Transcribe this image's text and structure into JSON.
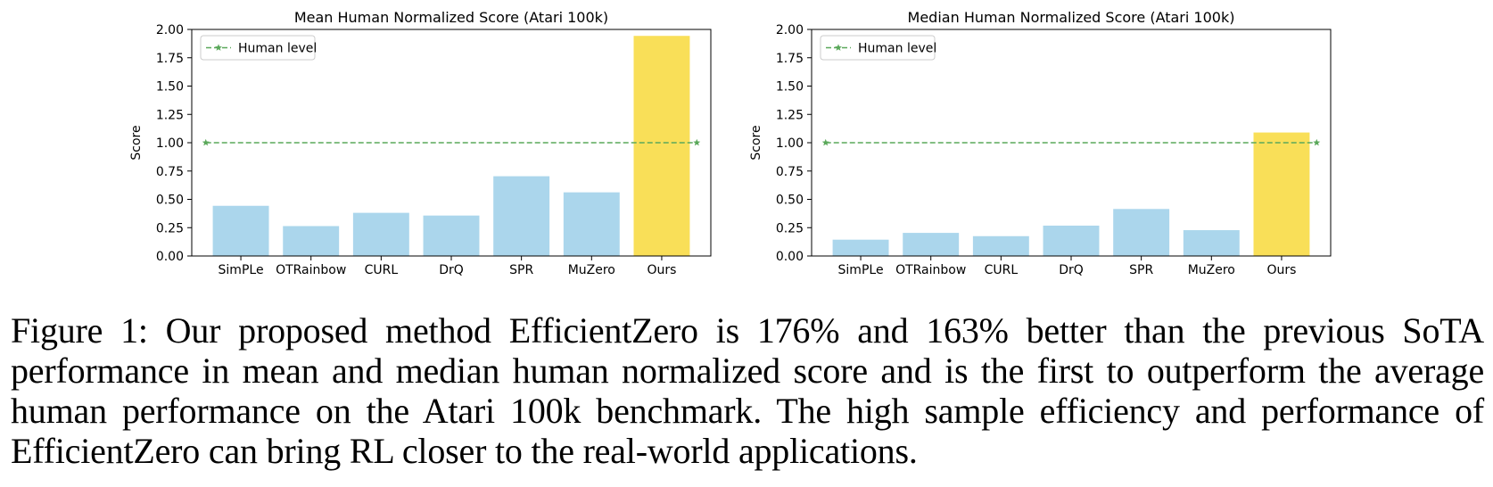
{
  "chart_data": [
    {
      "type": "bar",
      "title": "Mean Human Normalized Score (Atari 100k)",
      "xlabel": "",
      "ylabel": "Score",
      "categories": [
        "SimPLe",
        "OTRainbow",
        "CURL",
        "DrQ",
        "SPR",
        "MuZero",
        "Ours"
      ],
      "values": [
        0.443,
        0.264,
        0.381,
        0.357,
        0.704,
        0.562,
        1.943
      ],
      "bar_colors": [
        "#abd6ec",
        "#abd6ec",
        "#abd6ec",
        "#abd6ec",
        "#abd6ec",
        "#abd6ec",
        "#f9df58"
      ],
      "ylim": [
        0,
        2.0
      ],
      "yticks": [
        "0.00",
        "0.25",
        "0.50",
        "0.75",
        "1.00",
        "1.25",
        "1.50",
        "1.75",
        "2.00"
      ],
      "grid": false,
      "reference_line": {
        "name": "Human level",
        "value": 1.0,
        "color": "#5aa85a"
      },
      "legend": {
        "placement": "top-left",
        "entries": [
          "Human level"
        ]
      }
    },
    {
      "type": "bar",
      "title": "Median Human Normalized Score (Atari 100k)",
      "xlabel": "",
      "ylabel": "Score",
      "categories": [
        "SimPLe",
        "OTRainbow",
        "CURL",
        "DrQ",
        "SPR",
        "MuZero",
        "Ours"
      ],
      "values": [
        0.144,
        0.204,
        0.175,
        0.268,
        0.415,
        0.228,
        1.09
      ],
      "bar_colors": [
        "#abd6ec",
        "#abd6ec",
        "#abd6ec",
        "#abd6ec",
        "#abd6ec",
        "#abd6ec",
        "#f9df58"
      ],
      "ylim": [
        0,
        2.0
      ],
      "yticks": [
        "0.00",
        "0.25",
        "0.50",
        "0.75",
        "1.00",
        "1.25",
        "1.50",
        "1.75",
        "2.00"
      ],
      "grid": false,
      "reference_line": {
        "name": "Human level",
        "value": 1.0,
        "color": "#5aa85a"
      },
      "legend": {
        "placement": "top-left",
        "entries": [
          "Human level"
        ]
      }
    }
  ],
  "caption": "Figure 1: Our proposed method EfficientZero is 176% and 163% better than the previous SoTA performance in mean and median human normalized score and is the first to outperform the average human performance on the Atari 100k benchmark. The high sample efficiency and performance of EfficientZero can bring RL closer to the real-world applications."
}
